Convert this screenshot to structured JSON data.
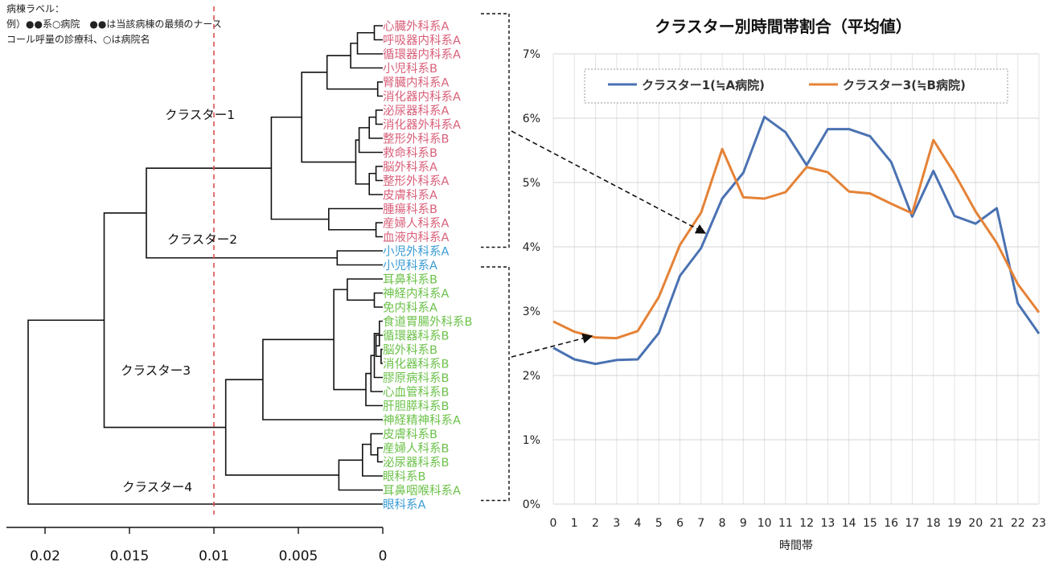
{
  "legend_note": {
    "line1": "病棟ラベル：",
    "line2": "例）●●系○病院　●●は当該病棟の最頻のナース",
    "line3": "コール呼量の診療科、○は病院名"
  },
  "colors": {
    "cluster1_labels": "#d9607a",
    "cluster2_labels": "#3a9bd5",
    "cluster3_labels": "#6cc24a",
    "cluster4_labels": "#3a9bd5",
    "cut_line": "#d9534f",
    "series1": "#4a72b2",
    "series2": "#e58236"
  },
  "dendrogram": {
    "axis_ticks": [
      "0.02",
      "0.015",
      "0.01",
      "0.005",
      "0"
    ],
    "axis_values": [
      0.02,
      0.015,
      0.01,
      0.005,
      0
    ],
    "cut_height": 0.01,
    "cluster_names": [
      "クラスター1",
      "クラスター2",
      "クラスター3",
      "クラスター4"
    ],
    "leaves": [
      {
        "label": "心臓外科系A",
        "cluster": 1
      },
      {
        "label": "呼吸器内科系A",
        "cluster": 1
      },
      {
        "label": "循環器内科系A",
        "cluster": 1
      },
      {
        "label": "小児科系B",
        "cluster": 1
      },
      {
        "label": "腎臓内科系A",
        "cluster": 1
      },
      {
        "label": "消化器内科系A",
        "cluster": 1
      },
      {
        "label": "泌尿器科系A",
        "cluster": 1
      },
      {
        "label": "消化器外科系A",
        "cluster": 1
      },
      {
        "label": "整形外科系B",
        "cluster": 1
      },
      {
        "label": "救命科系B",
        "cluster": 1
      },
      {
        "label": "脳外科系A",
        "cluster": 1
      },
      {
        "label": "整形外科系A",
        "cluster": 1
      },
      {
        "label": "皮膚科系A",
        "cluster": 1
      },
      {
        "label": "腫瘍科系B",
        "cluster": 1
      },
      {
        "label": "産婦人科系A",
        "cluster": 1
      },
      {
        "label": "血液内科系A",
        "cluster": 1
      },
      {
        "label": "小児外科系A",
        "cluster": 2
      },
      {
        "label": "小児科系A",
        "cluster": 2
      },
      {
        "label": "耳鼻科系B",
        "cluster": 3
      },
      {
        "label": "神経内科系A",
        "cluster": 3
      },
      {
        "label": "免内科系A",
        "cluster": 3
      },
      {
        "label": "食道胃腸外科系B",
        "cluster": 3
      },
      {
        "label": "循環器科系B",
        "cluster": 3
      },
      {
        "label": "脳外科系B",
        "cluster": 3
      },
      {
        "label": "消化器科系B",
        "cluster": 3
      },
      {
        "label": "膠原病科系B",
        "cluster": 3
      },
      {
        "label": "心血管科系B",
        "cluster": 3
      },
      {
        "label": "肝胆膵科系B",
        "cluster": 3
      },
      {
        "label": "神経精神科系A",
        "cluster": 3
      },
      {
        "label": "皮膚科系B",
        "cluster": 3
      },
      {
        "label": "産婦人科系B",
        "cluster": 3
      },
      {
        "label": "泌尿器科系B",
        "cluster": 3
      },
      {
        "label": "眼科系B",
        "cluster": 3
      },
      {
        "label": "耳鼻咽喉科系A",
        "cluster": 3
      },
      {
        "label": "眼科系A",
        "cluster": 4
      }
    ],
    "merges": [
      {
        "a": 0,
        "b": 1,
        "h": 0.0005
      },
      {
        "a": 35,
        "b": 2,
        "h": 0.0015
      },
      {
        "a": 36,
        "b": 3,
        "h": 0.0019
      },
      {
        "a": 4,
        "b": 5,
        "h": 0.0003
      },
      {
        "a": 37,
        "b": 38,
        "h": 0.0033
      },
      {
        "a": 6,
        "b": 7,
        "h": 0.0004
      },
      {
        "a": 40,
        "b": 8,
        "h": 0.0008
      },
      {
        "a": 41,
        "b": 9,
        "h": 0.0014
      },
      {
        "a": 10,
        "b": 11,
        "h": 0.0004
      },
      {
        "a": 43,
        "b": 12,
        "h": 0.0008
      },
      {
        "a": 42,
        "b": 44,
        "h": 0.0016
      },
      {
        "a": 39,
        "b": 45,
        "h": 0.0048
      },
      {
        "a": 14,
        "b": 15,
        "h": 0.0004
      },
      {
        "a": 13,
        "b": 47,
        "h": 0.0032
      },
      {
        "a": 46,
        "b": 48,
        "h": 0.0066
      },
      {
        "a": 16,
        "b": 17,
        "h": 0.0027
      },
      {
        "a": 49,
        "b": 50,
        "h": 0.014
      },
      {
        "a": 19,
        "b": 20,
        "h": 0.0005
      },
      {
        "a": 18,
        "b": 52,
        "h": 0.0021
      },
      {
        "a": 23,
        "b": 24,
        "h": 0.0001
      },
      {
        "a": 22,
        "b": 54,
        "h": 0.0004
      },
      {
        "a": 21,
        "b": 55,
        "h": 0.0002
      },
      {
        "a": 56,
        "b": 25,
        "h": 0.0005
      },
      {
        "a": 57,
        "b": 26,
        "h": 0.0007
      },
      {
        "a": 58,
        "b": 27,
        "h": 0.001
      },
      {
        "a": 53,
        "b": 59,
        "h": 0.0029
      },
      {
        "a": 60,
        "b": 28,
        "h": 0.0071
      },
      {
        "a": 30,
        "b": 31,
        "h": 0.0003
      },
      {
        "a": 29,
        "b": 62,
        "h": 0.0007
      },
      {
        "a": 63,
        "b": 32,
        "h": 0.0012
      },
      {
        "a": 64,
        "b": 33,
        "h": 0.0026
      },
      {
        "a": 61,
        "b": 65,
        "h": 0.0093
      },
      {
        "a": 51,
        "b": 66,
        "h": 0.0165
      },
      {
        "a": 67,
        "b": 34,
        "h": 0.021
      }
    ]
  },
  "chart_data": {
    "type": "line",
    "title": "クラスター別時間帯割合（平均値）",
    "xlabel": "時間帯",
    "ylabel": "",
    "x": [
      0,
      1,
      2,
      3,
      4,
      5,
      6,
      7,
      8,
      9,
      10,
      11,
      12,
      13,
      14,
      15,
      16,
      17,
      18,
      19,
      20,
      21,
      22,
      23
    ],
    "ylim": [
      0,
      7
    ],
    "yticks": [
      "0%",
      "1%",
      "2%",
      "3%",
      "4%",
      "5%",
      "6%",
      "7%"
    ],
    "ytick_values": [
      0,
      1,
      2,
      3,
      4,
      5,
      6,
      7
    ],
    "grid": true,
    "legend_position": "top",
    "series": [
      {
        "name": "クラスター1(≒A病院)",
        "values": [
          2.43,
          2.25,
          2.18,
          2.24,
          2.25,
          2.66,
          3.55,
          3.98,
          4.75,
          5.15,
          6.02,
          5.78,
          5.27,
          5.83,
          5.83,
          5.72,
          5.32,
          4.47,
          5.18,
          4.48,
          4.36,
          4.6,
          3.12,
          2.65
        ]
      },
      {
        "name": "クラスター3(≒B病院)",
        "values": [
          2.84,
          2.68,
          2.59,
          2.58,
          2.69,
          3.22,
          4.03,
          4.53,
          5.52,
          4.77,
          4.75,
          4.85,
          5.24,
          5.16,
          4.86,
          4.83,
          4.67,
          4.52,
          5.66,
          5.14,
          4.55,
          4.06,
          3.42,
          2.98
        ]
      }
    ]
  }
}
